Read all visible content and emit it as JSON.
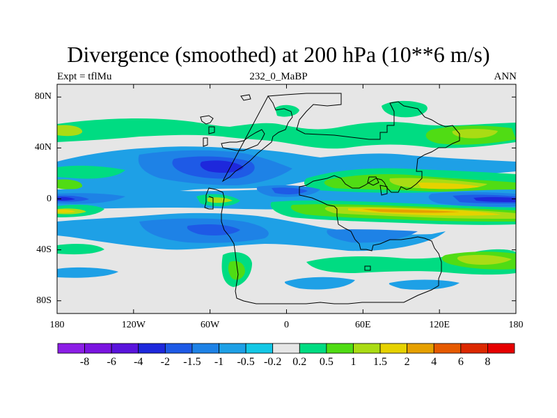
{
  "title": "Divergence (smoothed) at 200 hPa (10**6 m/s)",
  "subtitle_left": "Expt = tflMu",
  "subtitle_center": "232_0_MaBP",
  "subtitle_right": "ANN",
  "map": {
    "projection": "equirectangular",
    "lon_range": [
      -180,
      180
    ],
    "lat_range": [
      -90,
      90
    ],
    "background_color": "#e6e6e6",
    "outline_color": "#000000"
  },
  "axes": {
    "y_ticks": [
      {
        "label": "80N",
        "lat": 80
      },
      {
        "label": "40N",
        "lat": 40
      },
      {
        "label": "0",
        "lat": 0
      },
      {
        "label": "40S",
        "lat": -40
      },
      {
        "label": "80S",
        "lat": -80
      }
    ],
    "x_ticks": [
      {
        "label": "180",
        "lon": -180
      },
      {
        "label": "120W",
        "lon": -120
      },
      {
        "label": "60W",
        "lon": -60
      },
      {
        "label": "0",
        "lon": 0
      },
      {
        "label": "60E",
        "lon": 60
      },
      {
        "label": "120E",
        "lon": 120
      },
      {
        "label": "180",
        "lon": 180
      }
    ]
  },
  "colorbar": {
    "labels": [
      "-8",
      "-6",
      "-4",
      "-2",
      "-1.5",
      "-1",
      "-0.5",
      "-0.2",
      "0.2",
      "0.5",
      "1",
      "1.5",
      "2",
      "4",
      "6",
      "8"
    ],
    "colors": [
      "#8c1ee6",
      "#7a14e0",
      "#5a14dc",
      "#1e28dc",
      "#1e5ae6",
      "#1e82e6",
      "#1ea0e6",
      "#14c8e6",
      "#e6e6e6",
      "#00dc82",
      "#50dc14",
      "#aadc14",
      "#e6d200",
      "#e6a000",
      "#e65a00",
      "#dc2800",
      "#e60000"
    ]
  }
}
